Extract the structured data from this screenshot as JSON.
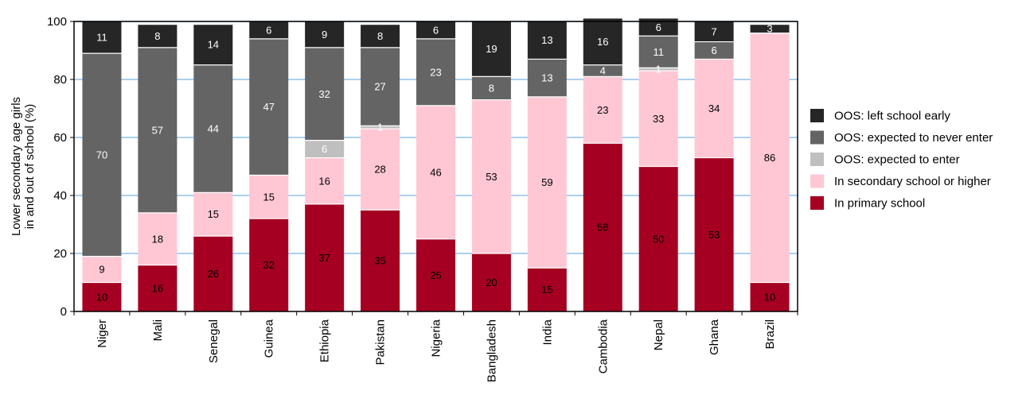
{
  "chart_data": {
    "type": "bar",
    "stacked": true,
    "orientation": "vertical",
    "ylabel_lines": [
      "Lower secondary age girls",
      "in and out of school (%)"
    ],
    "xlabel": "",
    "ylim": [
      0,
      100
    ],
    "yticks": [
      0,
      20,
      40,
      60,
      80,
      100
    ],
    "grid": true,
    "legend_position": "right",
    "categories": [
      "Niger",
      "Mali",
      "Senegal",
      "Guinea",
      "Ethiopia",
      "Pakistan",
      "Nigeria",
      "Bangladesh",
      "India",
      "Cambodia",
      "Nepal",
      "Ghana",
      "Brazil"
    ],
    "series": [
      {
        "name": "In primary school",
        "color": "#A50021",
        "label_color": "#000000",
        "values": [
          10,
          16,
          26,
          32,
          37,
          35,
          25,
          20,
          15,
          58,
          50,
          53,
          10
        ]
      },
      {
        "name": "In secondary school or higher",
        "color": "#FFC7D4",
        "label_color": "#000000",
        "values": [
          9,
          18,
          15,
          15,
          16,
          28,
          46,
          53,
          59,
          23,
          33,
          34,
          86
        ]
      },
      {
        "name": "OOS: expected to enter",
        "color": "#BFBFBF",
        "label_color": "#ffffff",
        "values": [
          0,
          0,
          0,
          0,
          6,
          1,
          0,
          0,
          0,
          0,
          1,
          0,
          0
        ]
      },
      {
        "name": "OOS: expected to never enter",
        "color": "#646464",
        "label_color": "#ffffff",
        "values": [
          70,
          57,
          44,
          47,
          32,
          27,
          23,
          8,
          13,
          4,
          11,
          6,
          0
        ]
      },
      {
        "name": "OOS: left school early",
        "color": "#262626",
        "label_color": "#ffffff",
        "values": [
          11,
          8,
          14,
          6,
          9,
          8,
          6,
          19,
          13,
          16,
          6,
          7,
          3
        ]
      }
    ],
    "legend_order": [
      "OOS: left school early",
      "OOS: expected to never enter",
      "OOS: expected to enter",
      "In secondary school or higher",
      "In primary school"
    ]
  }
}
